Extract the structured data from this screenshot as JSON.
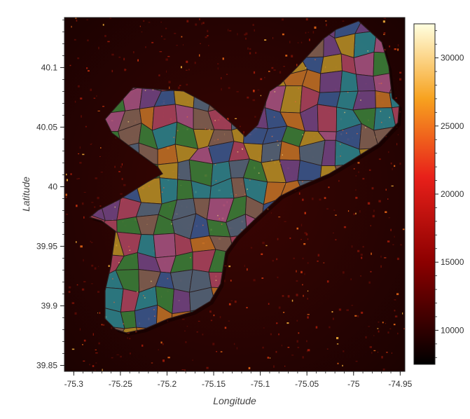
{
  "map": {
    "xlabel": "Longitude",
    "ylabel": "Latitude",
    "xlim": [
      -75.31,
      -74.945
    ],
    "ylim": [
      39.845,
      40.142
    ],
    "x_ticks": [
      {
        "value": -75.3,
        "label": "-75.3"
      },
      {
        "value": -75.25,
        "label": "-75.25"
      },
      {
        "value": -75.2,
        "label": "-75.2"
      },
      {
        "value": -75.15,
        "label": "-75.15"
      },
      {
        "value": -75.1,
        "label": "-75.1"
      },
      {
        "value": -75.05,
        "label": "-75.05"
      },
      {
        "value": -75.0,
        "label": "-75"
      },
      {
        "value": -74.95,
        "label": "-74.95"
      }
    ],
    "y_ticks": [
      {
        "value": 39.85,
        "label": "39.85"
      },
      {
        "value": 39.9,
        "label": "39.9"
      },
      {
        "value": 39.95,
        "label": "39.95"
      },
      {
        "value": 40.0,
        "label": "40"
      },
      {
        "value": 40.05,
        "label": "40.05"
      },
      {
        "value": 40.1,
        "label": "40.1"
      }
    ],
    "background_raster": "night-lights heat raster (dark red / black)",
    "overlay": "colored neighborhood polygons with dark outlines",
    "region_colors": [
      "#3e5f9a",
      "#d07a2a",
      "#7a4a8e",
      "#3f8a3e",
      "#b35a8c",
      "#2f8f99",
      "#8c6a5a",
      "#b84a66",
      "#c49a2a",
      "#5a6f85"
    ]
  },
  "colorbar": {
    "colormap": "hot",
    "min": 7500,
    "max": 32500,
    "ticks": [
      {
        "value": 10000,
        "label": "10000"
      },
      {
        "value": 15000,
        "label": "15000"
      },
      {
        "value": 20000,
        "label": "20000"
      },
      {
        "value": 25000,
        "label": "25000"
      },
      {
        "value": 30000,
        "label": "30000"
      }
    ]
  }
}
